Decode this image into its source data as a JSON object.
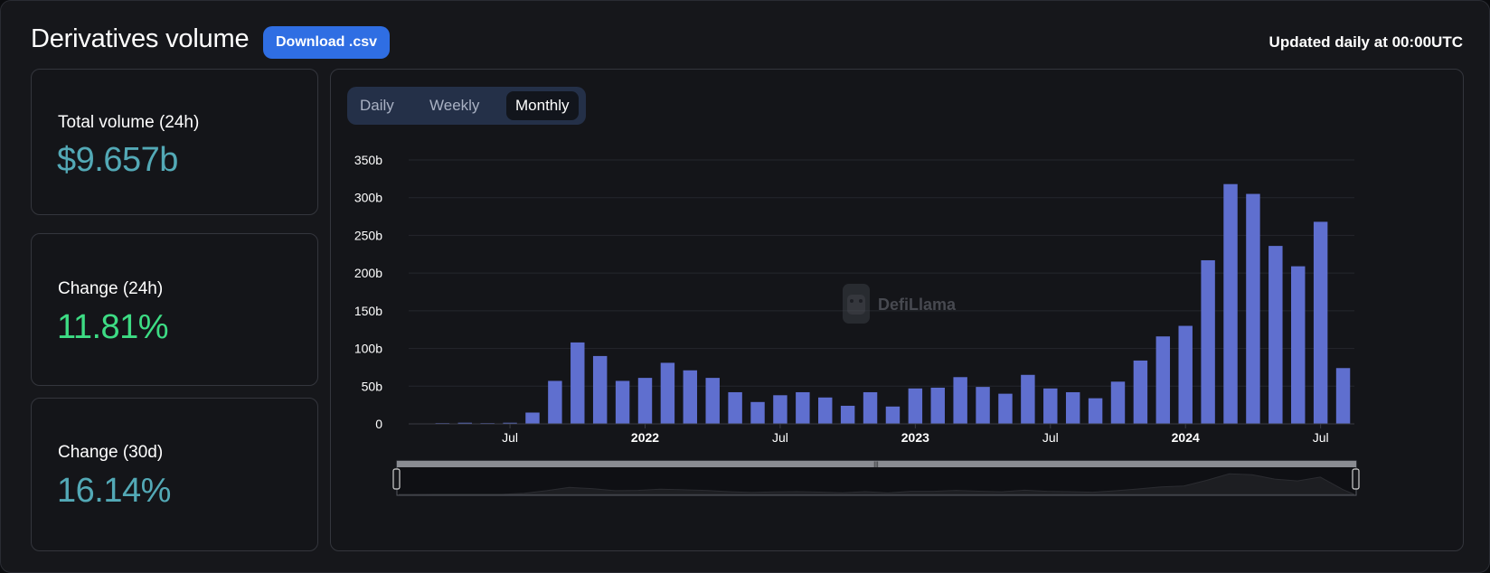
{
  "header": {
    "title": "Derivatives volume",
    "download_label": "Download .csv",
    "updated_note": "Updated daily at 00:00UTC"
  },
  "stats": [
    {
      "label": "Total volume (24h)",
      "value": "$9.657b",
      "color": "#53a9b6"
    },
    {
      "label": "Change (24h)",
      "value": "11.81%",
      "color": "#3ddc84"
    },
    {
      "label": "Change (30d)",
      "value": "16.14%",
      "color": "#53a9b6"
    }
  ],
  "period_tabs": [
    {
      "label": "Daily",
      "active": false
    },
    {
      "label": "Weekly",
      "active": false
    },
    {
      "label": "Monthly",
      "active": true
    }
  ],
  "watermark": {
    "text": "DefiLlama"
  },
  "colors": {
    "bar": "#5f6fcf",
    "grid": "#25272d",
    "axis_text": "#ffffff"
  },
  "chart_data": {
    "type": "bar",
    "title": "Derivatives volume",
    "granularity": "Monthly",
    "ylim": [
      0,
      350
    ],
    "y_unit": "b",
    "y_ticks": [
      "0",
      "50b",
      "100b",
      "150b",
      "200b",
      "250b",
      "300b",
      "350b"
    ],
    "x_tick_labels": [
      {
        "label": "Jul",
        "index": 4,
        "bold": false
      },
      {
        "label": "2022",
        "index": 10,
        "bold": true
      },
      {
        "label": "Jul",
        "index": 16,
        "bold": false
      },
      {
        "label": "2023",
        "index": 22,
        "bold": true
      },
      {
        "label": "Jul",
        "index": 28,
        "bold": false
      },
      {
        "label": "2024",
        "index": 34,
        "bold": true
      },
      {
        "label": "Jul",
        "index": 40,
        "bold": false
      }
    ],
    "categories": [
      "2021-03",
      "2021-04",
      "2021-05",
      "2021-06",
      "2021-07",
      "2021-08",
      "2021-09",
      "2021-10",
      "2021-11",
      "2021-12",
      "2022-01",
      "2022-02",
      "2022-03",
      "2022-04",
      "2022-05",
      "2022-06",
      "2022-07",
      "2022-08",
      "2022-09",
      "2022-10",
      "2022-11",
      "2022-12",
      "2023-01",
      "2023-02",
      "2023-03",
      "2023-04",
      "2023-05",
      "2023-06",
      "2023-07",
      "2023-08",
      "2023-09",
      "2023-10",
      "2023-11",
      "2023-12",
      "2024-01",
      "2024-02",
      "2024-03",
      "2024-04",
      "2024-05",
      "2024-06",
      "2024-07",
      "2024-08"
    ],
    "values": [
      0.5,
      1,
      1.5,
      1,
      1.5,
      15,
      57,
      108,
      90,
      57,
      61,
      81,
      71,
      61,
      42,
      29,
      38,
      42,
      35,
      24,
      42,
      23,
      47,
      48,
      62,
      49,
      40,
      65,
      47,
      42,
      34,
      56,
      84,
      116,
      130,
      217,
      318,
      305,
      236,
      209,
      268,
      74
    ]
  }
}
